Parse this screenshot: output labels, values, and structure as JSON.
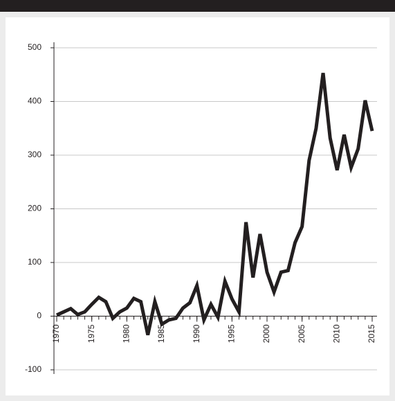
{
  "chart_data": {
    "type": "line",
    "x": [
      1970,
      1971,
      1972,
      1973,
      1974,
      1975,
      1976,
      1977,
      1978,
      1979,
      1980,
      1981,
      1982,
      1983,
      1984,
      1985,
      1986,
      1987,
      1988,
      1989,
      1990,
      1991,
      1992,
      1993,
      1994,
      1995,
      1996,
      1997,
      1998,
      1999,
      2000,
      2001,
      2002,
      2003,
      2004,
      2005,
      2006,
      2007,
      2008,
      2009,
      2010,
      2011,
      2012,
      2013,
      2014,
      2015
    ],
    "series": [
      {
        "color": "#231f20",
        "values": [
          2,
          8,
          14,
          3,
          8,
          22,
          35,
          27,
          -4,
          8,
          15,
          33,
          27,
          -35,
          27,
          -15,
          -7,
          -4,
          15,
          25,
          57,
          -7,
          22,
          -2,
          65,
          32,
          8,
          175,
          72,
          153,
          82,
          45,
          82,
          85,
          137,
          167,
          290,
          350,
          453,
          332,
          272,
          338,
          277,
          312,
          402,
          345
        ]
      }
    ],
    "xlim": [
      1970,
      2015
    ],
    "xticks": [
      1970,
      1975,
      1980,
      1985,
      1990,
      1995,
      2000,
      2005,
      2010,
      2015
    ],
    "ylim": [
      -100,
      500
    ],
    "yticks": [
      -100,
      0,
      100,
      200,
      300,
      400,
      500
    ],
    "grid": true
  }
}
